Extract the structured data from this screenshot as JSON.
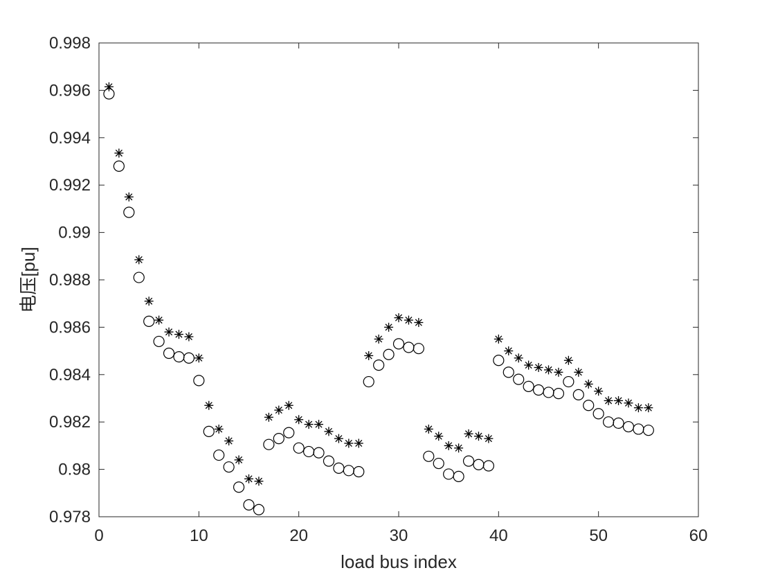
{
  "chart_data": {
    "type": "scatter",
    "title": "",
    "xlabel": "load bus index",
    "ylabel": "电压[pu]",
    "xlim": [
      0,
      60
    ],
    "ylim": [
      0.978,
      0.998
    ],
    "xticks": [
      0,
      10,
      20,
      30,
      40,
      50,
      60
    ],
    "xtick_labels": [
      "0",
      "10",
      "20",
      "30",
      "40",
      "50",
      "60"
    ],
    "yticks": [
      0.978,
      0.98,
      0.982,
      0.984,
      0.986,
      0.988,
      0.99,
      0.992,
      0.994,
      0.996,
      0.998
    ],
    "ytick_labels": [
      "0.978",
      "0.98",
      "0.982",
      "0.984",
      "0.986",
      "0.988",
      "0.99",
      "0.992",
      "0.994",
      "0.996",
      "0.998"
    ],
    "grid": false,
    "legend": "none",
    "colors": {
      "marker": "#000000",
      "axis": "#262626"
    },
    "series": [
      {
        "marker": "asterisk",
        "x": [
          1,
          2,
          3,
          4,
          5,
          6,
          7,
          8,
          9,
          10,
          11,
          12,
          13,
          14,
          15,
          16,
          17,
          18,
          19,
          20,
          21,
          22,
          23,
          24,
          25,
          26,
          27,
          28,
          29,
          30,
          31,
          32,
          33,
          34,
          35,
          36,
          37,
          38,
          39,
          40,
          41,
          42,
          43,
          44,
          45,
          46,
          47,
          48,
          49,
          50,
          51,
          52,
          53,
          54,
          55
        ],
        "y": [
          0.99615,
          0.99335,
          0.9915,
          0.98885,
          0.9871,
          0.9863,
          0.9858,
          0.9857,
          0.9856,
          0.9847,
          0.9827,
          0.9817,
          0.9812,
          0.9804,
          0.9796,
          0.9795,
          0.9822,
          0.9825,
          0.9827,
          0.9821,
          0.9819,
          0.9819,
          0.9816,
          0.9813,
          0.9811,
          0.9811,
          0.9848,
          0.9855,
          0.986,
          0.9864,
          0.9863,
          0.9862,
          0.9817,
          0.9814,
          0.981,
          0.9809,
          0.9815,
          0.9814,
          0.9813,
          0.9855,
          0.985,
          0.9847,
          0.9844,
          0.9843,
          0.9842,
          0.9841,
          0.9846,
          0.9841,
          0.9836,
          0.9833,
          0.9829,
          0.9829,
          0.9828,
          0.9826,
          0.9826
        ]
      },
      {
        "marker": "circle",
        "x": [
          1,
          2,
          3,
          4,
          5,
          6,
          7,
          8,
          9,
          10,
          11,
          12,
          13,
          14,
          15,
          16,
          17,
          18,
          19,
          20,
          21,
          22,
          23,
          24,
          25,
          26,
          27,
          28,
          29,
          30,
          31,
          32,
          33,
          34,
          35,
          36,
          37,
          38,
          39,
          40,
          41,
          42,
          43,
          44,
          45,
          46,
          47,
          48,
          49,
          50,
          51,
          52,
          53,
          54,
          55
        ],
        "y": [
          0.99585,
          0.9928,
          0.99085,
          0.9881,
          0.98625,
          0.9854,
          0.9849,
          0.98475,
          0.9847,
          0.98375,
          0.9816,
          0.9806,
          0.9801,
          0.97925,
          0.9785,
          0.9783,
          0.98105,
          0.9813,
          0.98155,
          0.9809,
          0.98075,
          0.9807,
          0.98035,
          0.98005,
          0.97995,
          0.9799,
          0.9837,
          0.9844,
          0.98485,
          0.9853,
          0.98515,
          0.9851,
          0.98055,
          0.98025,
          0.9798,
          0.9797,
          0.98035,
          0.9802,
          0.98015,
          0.9846,
          0.9841,
          0.9838,
          0.9835,
          0.98335,
          0.98325,
          0.9832,
          0.9837,
          0.98315,
          0.9827,
          0.98235,
          0.982,
          0.98195,
          0.9818,
          0.9817,
          0.98165
        ]
      }
    ]
  }
}
